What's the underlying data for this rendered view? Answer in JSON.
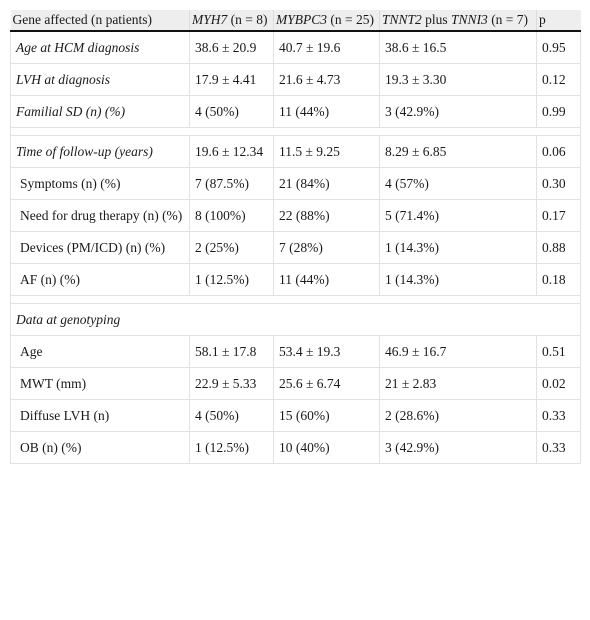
{
  "table": {
    "header": {
      "col1": "Gene affected (n patients)",
      "col2_gene": "MYH7",
      "col2_n": " (n = 8)",
      "col3_gene": "MYBPC3",
      "col3_n": " (n = 25)",
      "col4_gene_a": "TNNT2",
      "col4_plus": " plus ",
      "col4_gene_b": "TNNI3",
      "col4_n": " (n = 7)",
      "col5": "p"
    },
    "rows": [
      {
        "label": "Age at HCM diagnosis",
        "v1": "38.6 ± 20.9",
        "v2": "40.7 ± 19.6",
        "v3": "38.6 ± 16.5",
        "p": "0.95"
      },
      {
        "label": "LVH at diagnosis",
        "v1": "17.9 ± 4.41",
        "v2": "21.6 ± 4.73",
        "v3": "19.3 ± 3.30",
        "p": "0.12"
      },
      {
        "label": "Familial SD (n) (%)",
        "v1": "4 (50%)",
        "v2": "11 (44%)",
        "v3": "3 (42.9%)",
        "p": "0.99"
      },
      {
        "label": "Time of follow-up (years)",
        "v1": "19.6 ± 12.34",
        "v2": "11.5 ± 9.25",
        "v3": "8.29 ± 6.85",
        "p": "0.06"
      },
      {
        "label": "Symptoms (n) (%)",
        "v1": "7 (87.5%)",
        "v2": "21 (84%)",
        "v3": "4 (57%)",
        "p": "0.30"
      },
      {
        "label": "Need for drug therapy (n) (%)",
        "v1": "8 (100%)",
        "v2": "22 (88%)",
        "v3": "5 (71.4%)",
        "p": "0.17"
      },
      {
        "label": "Devices (PM/ICD) (n) (%)",
        "v1": "2 (25%)",
        "v2": "7 (28%)",
        "v3": "1 (14.3%)",
        "p": "0.88"
      },
      {
        "label": "AF (n) (%)",
        "v1": "1 (12.5%)",
        "v2": "11 (44%)",
        "v3": "1 (14.3%)",
        "p": "0.18"
      },
      {
        "label": "Data at genotyping"
      },
      {
        "label": "Age",
        "v1": "58.1 ± 17.8",
        "v2": "53.4 ± 19.3",
        "v3": "46.9 ± 16.7",
        "p": "0.51"
      },
      {
        "label": "MWT (mm)",
        "v1": "22.9 ± 5.33",
        "v2": "25.6 ± 6.74",
        "v3": "21 ± 2.83",
        "p": "0.02"
      },
      {
        "label": "Diffuse LVH (n)",
        "v1": "4 (50%)",
        "v2": "15 (60%)",
        "v3": "2 (28.6%)",
        "p": "0.33"
      },
      {
        "label": "OB (n) (%)",
        "v1": "1 (12.5%)",
        "v2": "10 (40%)",
        "v3": "3 (42.9%)",
        "p": "0.33"
      }
    ]
  }
}
